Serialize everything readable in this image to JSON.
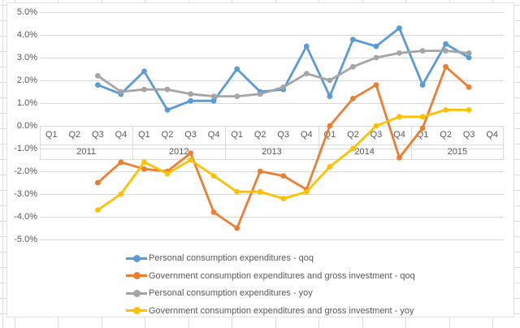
{
  "chart_data": {
    "type": "line",
    "title": "",
    "x_axis": {
      "quarters": [
        "Q1",
        "Q2",
        "Q3",
        "Q4"
      ],
      "years": [
        "2011",
        "2012",
        "2013",
        "2014",
        "2015"
      ]
    },
    "y_axis": {
      "min": -5,
      "max": 5,
      "step": 1,
      "format": "percent",
      "tick_labels": [
        "5.0%",
        "4.0%",
        "3.0%",
        "2.0%",
        "1.0%",
        "0.0%",
        "-1.0%",
        "-2.0%",
        "-3.0%",
        "-4.0%",
        "-5.0%"
      ]
    },
    "grid": true,
    "legend_position": "bottom-center",
    "series": [
      {
        "id": "pce-qoq",
        "name": "Personal consumption expenditures - qoq",
        "color": "#5B9BD5",
        "values": [
          null,
          null,
          1.8,
          1.4,
          2.4,
          0.7,
          1.1,
          1.1,
          2.5,
          1.5,
          1.6,
          3.5,
          1.3,
          3.8,
          3.5,
          4.3,
          1.8,
          3.6,
          3.0,
          null
        ]
      },
      {
        "id": "gov-qoq",
        "name": "Government consumption expenditures and gross investment - qoq",
        "color": "#ED7D31",
        "values": [
          null,
          null,
          -2.5,
          -1.6,
          -1.9,
          -2.0,
          -1.2,
          -3.8,
          -4.5,
          -2.0,
          -2.2,
          -2.8,
          0.0,
          1.2,
          1.8,
          -1.4,
          -0.1,
          2.6,
          1.7,
          null
        ]
      },
      {
        "id": "pce-yoy",
        "name": "Personal consumption expenditures - yoy",
        "color": "#A5A5A5",
        "values": [
          null,
          null,
          2.2,
          1.5,
          1.6,
          1.6,
          1.4,
          1.3,
          1.3,
          1.4,
          1.7,
          2.3,
          2.0,
          2.6,
          3.0,
          3.2,
          3.3,
          3.3,
          3.2,
          null
        ]
      },
      {
        "id": "gov-yoy",
        "name": "Government consumption expenditures and gross investment - yoy",
        "color": "#FFC000",
        "values": [
          null,
          null,
          -3.7,
          -3.0,
          -1.6,
          -2.1,
          -1.5,
          -2.2,
          -2.9,
          -2.9,
          -3.2,
          -2.9,
          -1.8,
          -1.0,
          0.0,
          0.4,
          0.4,
          0.7,
          0.7,
          null
        ]
      }
    ]
  }
}
